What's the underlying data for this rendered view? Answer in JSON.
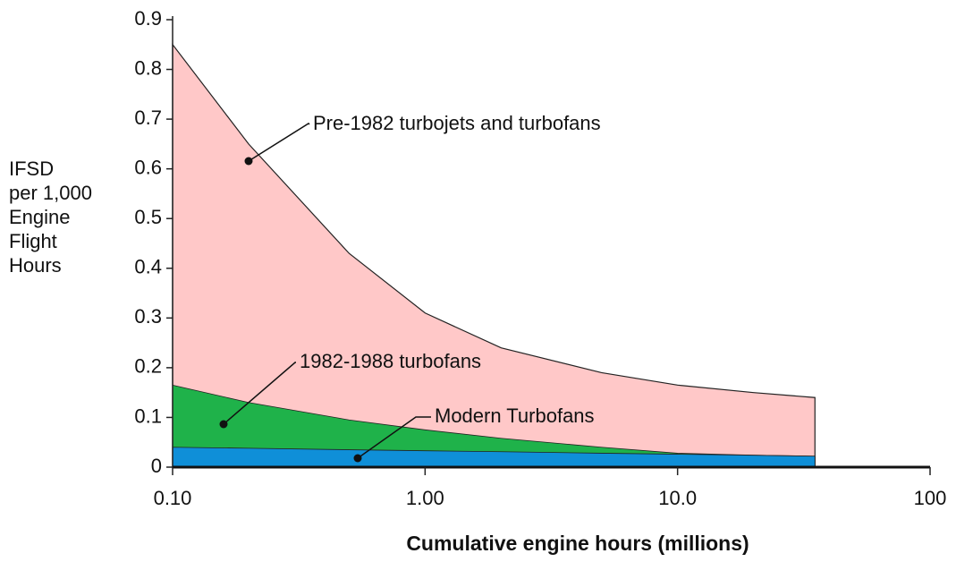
{
  "chart_data": {
    "type": "area",
    "x_label": "Cumulative engine hours (millions)",
    "y_label": [
      "IFSD",
      "per 1,000",
      "Engine",
      "Flight",
      "Hours"
    ],
    "x": [
      0.1,
      0.2,
      0.5,
      1,
      2,
      5,
      10,
      20,
      35
    ],
    "series": [
      {
        "name": "Pre-1982 turbojets and turbofans",
        "color": "#ffc8c8",
        "values": [
          0.85,
          0.65,
          0.43,
          0.31,
          0.24,
          0.19,
          0.165,
          0.15,
          0.14
        ]
      },
      {
        "name": "1982-1988 turbofans",
        "color": "#1fb24a",
        "values": [
          0.165,
          0.13,
          0.095,
          0.075,
          0.058,
          0.04,
          0.028,
          0.024,
          0.022
        ]
      },
      {
        "name": "Modern Turbofans",
        "color": "#0f8fd8",
        "values": [
          0.04,
          0.038,
          0.035,
          0.033,
          0.031,
          0.028,
          0.026,
          0.024,
          0.022
        ]
      }
    ],
    "xscale": "log",
    "xlim": [
      0.1,
      100
    ],
    "xticks": [
      {
        "value": 0.1,
        "label": "0.10"
      },
      {
        "value": 1,
        "label": "1.00"
      },
      {
        "value": 10,
        "label": "10.0"
      },
      100
    ],
    "ylim": [
      0,
      0.9
    ],
    "yticks": [
      0,
      0.1,
      0.2,
      0.3,
      0.4,
      0.5,
      0.6,
      0.7,
      0.8,
      0.9
    ],
    "grid": false
  }
}
